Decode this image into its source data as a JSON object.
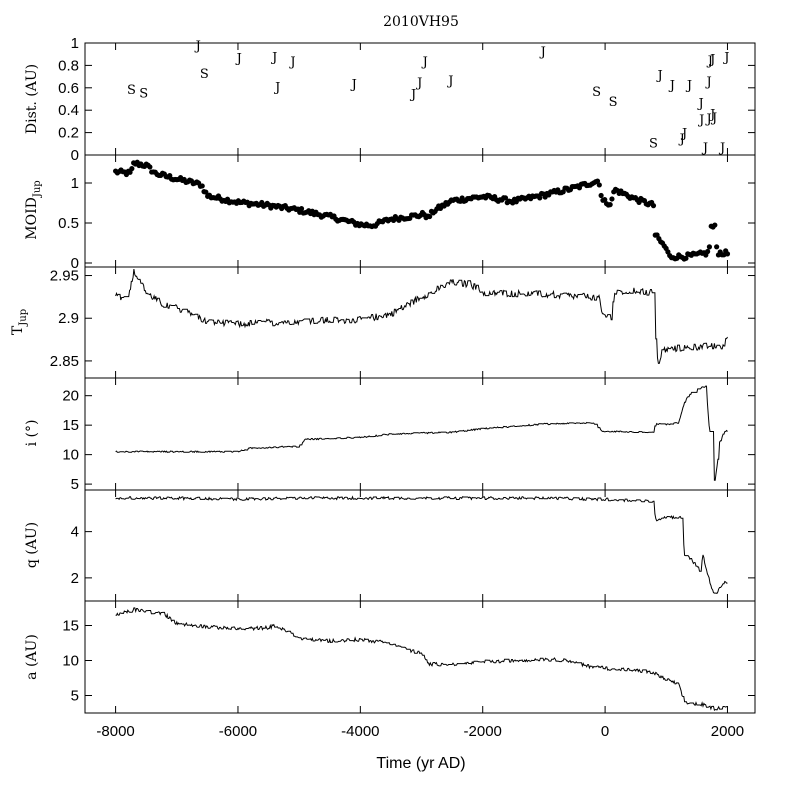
{
  "chart_data": [
    {
      "type": "scatter",
      "panel": "encounters",
      "title": "2010VH95",
      "ylabel": "Dist. (AU)",
      "ylim": [
        0,
        1
      ],
      "yticks": [
        0,
        0.2,
        0.4,
        0.6,
        0.8,
        1
      ],
      "ytick_labels": [
        "0",
        "0.2",
        "0.4",
        "0.6",
        "0.8",
        "1"
      ],
      "xlim": [
        -8500,
        2450
      ],
      "points": [
        {
          "x": -7740,
          "y": 0.59,
          "label": "S"
        },
        {
          "x": -7540,
          "y": 0.56,
          "label": "S"
        },
        {
          "x": -6650,
          "y": 0.98,
          "label": "J"
        },
        {
          "x": -6550,
          "y": 0.73,
          "label": "S"
        },
        {
          "x": -5980,
          "y": 0.87,
          "label": "J"
        },
        {
          "x": -5400,
          "y": 0.88,
          "label": "J"
        },
        {
          "x": -5350,
          "y": 0.61,
          "label": "J"
        },
        {
          "x": -5100,
          "y": 0.84,
          "label": "J"
        },
        {
          "x": -4100,
          "y": 0.64,
          "label": "J"
        },
        {
          "x": -3130,
          "y": 0.55,
          "label": "J"
        },
        {
          "x": -3030,
          "y": 0.65,
          "label": "J"
        },
        {
          "x": -2940,
          "y": 0.84,
          "label": "J"
        },
        {
          "x": -2520,
          "y": 0.67,
          "label": "J"
        },
        {
          "x": -1010,
          "y": 0.93,
          "label": "J"
        },
        {
          "x": -140,
          "y": 0.57,
          "label": "S"
        },
        {
          "x": 130,
          "y": 0.48,
          "label": "S"
        },
        {
          "x": 790,
          "y": 0.11,
          "label": "S"
        },
        {
          "x": 900,
          "y": 0.72,
          "label": "J"
        },
        {
          "x": 1100,
          "y": 0.63,
          "label": "J"
        },
        {
          "x": 1260,
          "y": 0.15,
          "label": "J"
        },
        {
          "x": 1300,
          "y": 0.2,
          "label": "J"
        },
        {
          "x": 1380,
          "y": 0.63,
          "label": "J"
        },
        {
          "x": 1570,
          "y": 0.47,
          "label": "J"
        },
        {
          "x": 1580,
          "y": 0.32,
          "label": "J"
        },
        {
          "x": 1640,
          "y": 0.07,
          "label": "J"
        },
        {
          "x": 1700,
          "y": 0.66,
          "label": "J"
        },
        {
          "x": 1720,
          "y": 0.85,
          "label": "J"
        },
        {
          "x": 1760,
          "y": 0.86,
          "label": "J"
        },
        {
          "x": 1700,
          "y": 0.33,
          "label": "J"
        },
        {
          "x": 1760,
          "y": 0.37,
          "label": "J"
        },
        {
          "x": 1790,
          "y": 0.34,
          "label": "J"
        },
        {
          "x": 1920,
          "y": 0.07,
          "label": "J"
        },
        {
          "x": 1990,
          "y": 0.88,
          "label": "J"
        }
      ]
    },
    {
      "type": "scatter",
      "panel": "moid",
      "ylabel": "MOID",
      "ylabel_sub": "Jup",
      "ylim": [
        -0.05,
        1.35
      ],
      "yticks": [
        0,
        0.5,
        1
      ],
      "ytick_labels": [
        "0",
        "0.5",
        "1"
      ],
      "xlim": [
        -8500,
        2450
      ],
      "marker": "filled-circle",
      "anchors": [
        [
          -8000,
          1.14
        ],
        [
          -7750,
          1.12
        ],
        [
          -7700,
          1.25
        ],
        [
          -7500,
          1.22
        ],
        [
          -7350,
          1.12
        ],
        [
          -7000,
          1.05
        ],
        [
          -6600,
          0.98
        ],
        [
          -6500,
          0.84
        ],
        [
          -6000,
          0.76
        ],
        [
          -5500,
          0.72
        ],
        [
          -5000,
          0.66
        ],
        [
          -4500,
          0.58
        ],
        [
          -4000,
          0.48
        ],
        [
          -3800,
          0.47
        ],
        [
          -3500,
          0.55
        ],
        [
          -3000,
          0.6
        ],
        [
          -2950,
          0.62
        ],
        [
          -2900,
          0.56
        ],
        [
          -2800,
          0.65
        ],
        [
          -2500,
          0.78
        ],
        [
          -2000,
          0.83
        ],
        [
          -1500,
          0.77
        ],
        [
          -1000,
          0.85
        ],
        [
          -500,
          0.94
        ],
        [
          -100,
          1.03
        ],
        [
          -50,
          0.78
        ],
        [
          100,
          0.74
        ],
        [
          150,
          0.92
        ],
        [
          500,
          0.8
        ],
        [
          800,
          0.72
        ],
        [
          820,
          0.35
        ],
        [
          1000,
          0.18
        ],
        [
          1050,
          0.08
        ],
        [
          1300,
          0.08
        ],
        [
          1500,
          0.1
        ],
        [
          1700,
          0.13
        ],
        [
          1720,
          0.45
        ],
        [
          1800,
          0.45
        ],
        [
          1830,
          0.13
        ],
        [
          2000,
          0.12
        ]
      ],
      "n_points": 340
    },
    {
      "type": "line",
      "panel": "tisserand",
      "ylabel": "T",
      "ylabel_sub": "Jup",
      "ylim": [
        2.83,
        2.96
      ],
      "yticks": [
        2.85,
        2.9,
        2.95
      ],
      "ytick_labels": [
        "2.85",
        "2.9",
        "2.95"
      ],
      "xlim": [
        -8500,
        2450
      ],
      "anchors": [
        [
          -8000,
          2.926
        ],
        [
          -7800,
          2.924
        ],
        [
          -7700,
          2.955
        ],
        [
          -7500,
          2.93
        ],
        [
          -7200,
          2.915
        ],
        [
          -7000,
          2.912
        ],
        [
          -6800,
          2.908
        ],
        [
          -6500,
          2.895
        ],
        [
          -6000,
          2.893
        ],
        [
          -5000,
          2.897
        ],
        [
          -4000,
          2.898
        ],
        [
          -3500,
          2.905
        ],
        [
          -3000,
          2.925
        ],
        [
          -2500,
          2.942
        ],
        [
          -2200,
          2.94
        ],
        [
          -2000,
          2.93
        ],
        [
          -1000,
          2.928
        ],
        [
          -100,
          2.924
        ],
        [
          -50,
          2.905
        ],
        [
          100,
          2.9
        ],
        [
          150,
          2.93
        ],
        [
          500,
          2.932
        ],
        [
          800,
          2.93
        ],
        [
          830,
          2.875
        ],
        [
          880,
          2.84
        ],
        [
          930,
          2.862
        ],
        [
          1200,
          2.865
        ],
        [
          1600,
          2.867
        ],
        [
          1950,
          2.867
        ],
        [
          2000,
          2.88
        ]
      ],
      "noise": 0.004
    },
    {
      "type": "line",
      "panel": "inclination",
      "ylabel": "i (°)",
      "ylim": [
        4,
        23
      ],
      "yticks": [
        5,
        10,
        15,
        20
      ],
      "ytick_labels": [
        "5",
        "10",
        "15",
        "20"
      ],
      "xlim": [
        -8500,
        2450
      ],
      "anchors": [
        [
          -8000,
          10.5
        ],
        [
          -6000,
          10.5
        ],
        [
          -5800,
          11.1
        ],
        [
          -5000,
          11.4
        ],
        [
          -4900,
          12.6
        ],
        [
          -4000,
          12.9
        ],
        [
          -3500,
          13.5
        ],
        [
          -2500,
          13.8
        ],
        [
          -2000,
          14.4
        ],
        [
          -1000,
          15.2
        ],
        [
          -200,
          15.4
        ],
        [
          -50,
          14.0
        ],
        [
          600,
          13.8
        ],
        [
          800,
          13.8
        ],
        [
          820,
          15.2
        ],
        [
          1000,
          15.1
        ],
        [
          1200,
          15.4
        ],
        [
          1300,
          19.0
        ],
        [
          1400,
          20.5
        ],
        [
          1580,
          21.4
        ],
        [
          1650,
          21.6
        ],
        [
          1700,
          15.0
        ],
        [
          1750,
          11.0
        ],
        [
          1790,
          5.0
        ],
        [
          1830,
          8.0
        ],
        [
          1870,
          12.0
        ],
        [
          1950,
          14.0
        ]
      ],
      "noise": 0.12
    },
    {
      "type": "line",
      "panel": "perihelion",
      "ylabel": "q (AU)",
      "ylim": [
        1,
        5.8
      ],
      "yticks": [
        2,
        4
      ],
      "ytick_labels": [
        "2",
        "4"
      ],
      "xlim": [
        -8500,
        2450
      ],
      "anchors": [
        [
          -8000,
          5.45
        ],
        [
          -7000,
          5.45
        ],
        [
          -6000,
          5.4
        ],
        [
          -5000,
          5.45
        ],
        [
          -4000,
          5.45
        ],
        [
          -3000,
          5.45
        ],
        [
          -2000,
          5.45
        ],
        [
          -1000,
          5.45
        ],
        [
          -100,
          5.4
        ],
        [
          500,
          5.35
        ],
        [
          800,
          5.3
        ],
        [
          820,
          4.5
        ],
        [
          1000,
          4.65
        ],
        [
          1250,
          4.6
        ],
        [
          1300,
          3.0
        ],
        [
          1400,
          2.8
        ],
        [
          1500,
          2.5
        ],
        [
          1550,
          2.2
        ],
        [
          1600,
          3.0
        ],
        [
          1650,
          2.4
        ],
        [
          1750,
          1.5
        ],
        [
          1800,
          1.2
        ],
        [
          1850,
          1.5
        ],
        [
          1950,
          1.8
        ]
      ],
      "noise": 0.06
    },
    {
      "type": "line",
      "panel": "semimajor-axis",
      "ylabel": "a (AU)",
      "ylim": [
        2.5,
        18.5
      ],
      "yticks": [
        5,
        10,
        15
      ],
      "ytick_labels": [
        "5",
        "10",
        "15"
      ],
      "xlim": [
        -8500,
        2450
      ],
      "xticks": [
        -8000,
        -6000,
        -4000,
        -2000,
        0,
        2000
      ],
      "xtick_labels": [
        "-8000",
        "-6000",
        "-4000",
        "-2000",
        "0",
        "2000"
      ],
      "xlabel": "Time (yr AD)",
      "anchors": [
        [
          -8000,
          16.4
        ],
        [
          -7700,
          17.3
        ],
        [
          -7200,
          16.6
        ],
        [
          -7000,
          15.3
        ],
        [
          -6500,
          14.8
        ],
        [
          -6000,
          14.5
        ],
        [
          -5500,
          14.7
        ],
        [
          -5400,
          15.0
        ],
        [
          -5000,
          13.2
        ],
        [
          -4500,
          12.8
        ],
        [
          -4000,
          13.0
        ],
        [
          -3500,
          12.5
        ],
        [
          -3200,
          11.4
        ],
        [
          -3000,
          11.0
        ],
        [
          -2900,
          9.5
        ],
        [
          -2500,
          9.4
        ],
        [
          -2000,
          9.8
        ],
        [
          -1500,
          10.0
        ],
        [
          -1000,
          10.2
        ],
        [
          -600,
          10.0
        ],
        [
          -300,
          9.2
        ],
        [
          0,
          8.9
        ],
        [
          500,
          8.6
        ],
        [
          800,
          8.2
        ],
        [
          900,
          7.7
        ],
        [
          1000,
          7.3
        ],
        [
          1200,
          6.6
        ],
        [
          1300,
          3.9
        ],
        [
          1600,
          3.7
        ],
        [
          1800,
          3.1
        ],
        [
          2000,
          3.5
        ]
      ],
      "noise": 0.25
    }
  ]
}
